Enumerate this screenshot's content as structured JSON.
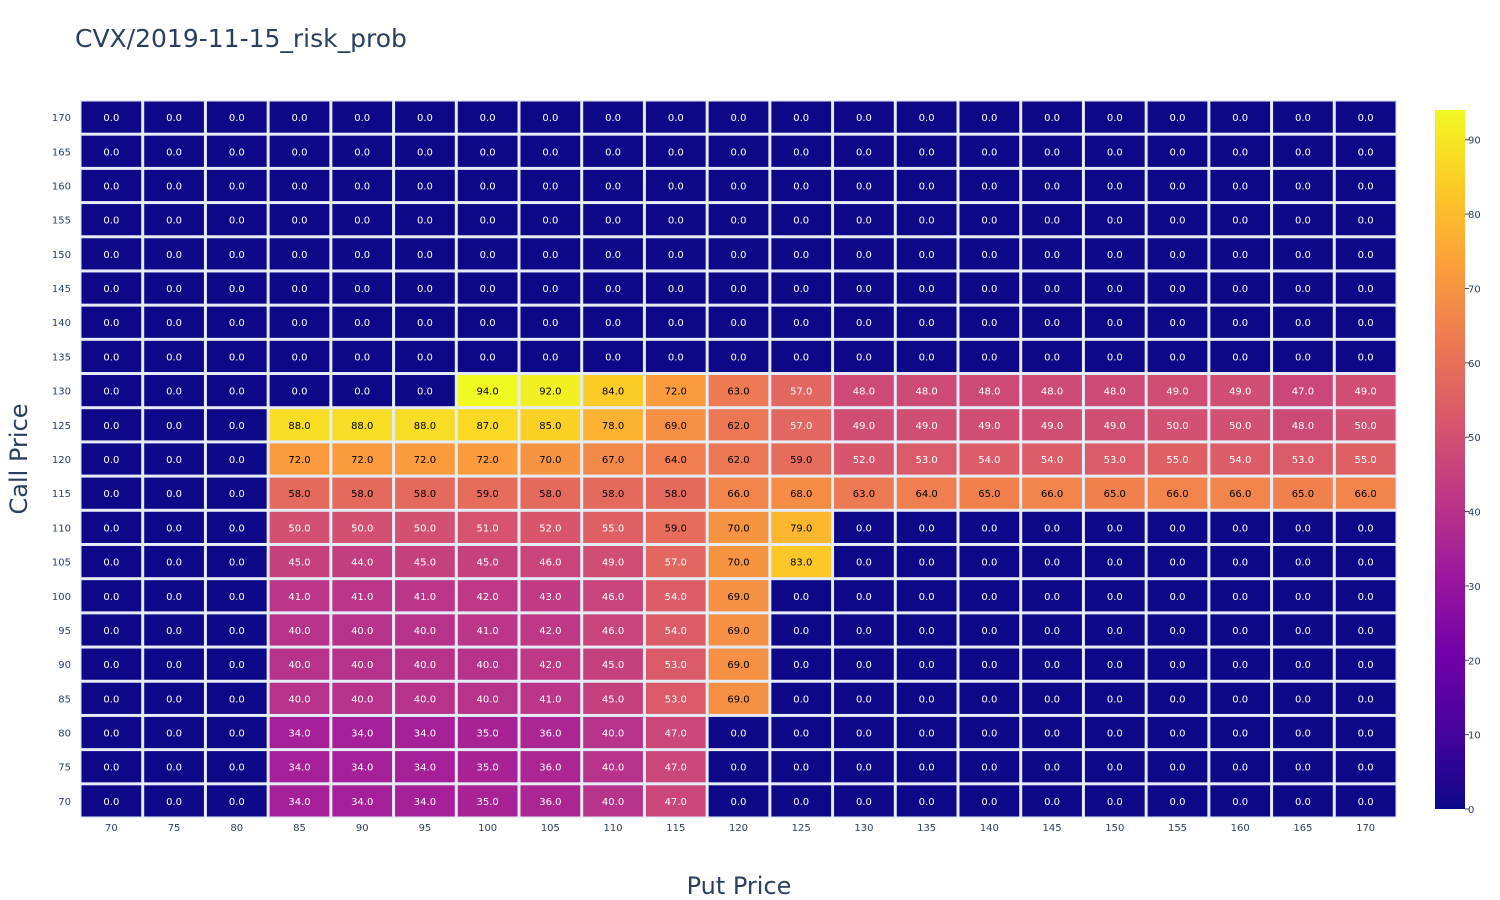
{
  "chart_data": {
    "type": "heatmap",
    "title": "CVX/2019-11-15_risk_prob",
    "xlabel": "Put Price",
    "ylabel": "Call Price",
    "x": [
      "70",
      "75",
      "80",
      "85",
      "90",
      "95",
      "100",
      "105",
      "110",
      "115",
      "120",
      "125",
      "130",
      "135",
      "140",
      "145",
      "150",
      "155",
      "160",
      "165",
      "170"
    ],
    "y": [
      "170",
      "165",
      "160",
      "155",
      "150",
      "145",
      "140",
      "135",
      "130",
      "125",
      "120",
      "115",
      "110",
      "105",
      "100",
      "95",
      "90",
      "85",
      "80",
      "75",
      "70"
    ],
    "z": [
      [
        0,
        0,
        0,
        0,
        0,
        0,
        0,
        0,
        0,
        0,
        0,
        0,
        0,
        0,
        0,
        0,
        0,
        0,
        0,
        0,
        0
      ],
      [
        0,
        0,
        0,
        0,
        0,
        0,
        0,
        0,
        0,
        0,
        0,
        0,
        0,
        0,
        0,
        0,
        0,
        0,
        0,
        0,
        0
      ],
      [
        0,
        0,
        0,
        0,
        0,
        0,
        0,
        0,
        0,
        0,
        0,
        0,
        0,
        0,
        0,
        0,
        0,
        0,
        0,
        0,
        0
      ],
      [
        0,
        0,
        0,
        0,
        0,
        0,
        0,
        0,
        0,
        0,
        0,
        0,
        0,
        0,
        0,
        0,
        0,
        0,
        0,
        0,
        0
      ],
      [
        0,
        0,
        0,
        0,
        0,
        0,
        0,
        0,
        0,
        0,
        0,
        0,
        0,
        0,
        0,
        0,
        0,
        0,
        0,
        0,
        0
      ],
      [
        0,
        0,
        0,
        0,
        0,
        0,
        0,
        0,
        0,
        0,
        0,
        0,
        0,
        0,
        0,
        0,
        0,
        0,
        0,
        0,
        0
      ],
      [
        0,
        0,
        0,
        0,
        0,
        0,
        0,
        0,
        0,
        0,
        0,
        0,
        0,
        0,
        0,
        0,
        0,
        0,
        0,
        0,
        0
      ],
      [
        0,
        0,
        0,
        0,
        0,
        0,
        0,
        0,
        0,
        0,
        0,
        0,
        0,
        0,
        0,
        0,
        0,
        0,
        0,
        0,
        0
      ],
      [
        0,
        0,
        0,
        0,
        0,
        0,
        94,
        92,
        84,
        72,
        63,
        57,
        48,
        48,
        48,
        48,
        48,
        49,
        49,
        47,
        49
      ],
      [
        0,
        0,
        0,
        88,
        88,
        88,
        87,
        85,
        78,
        69,
        62,
        57,
        49,
        49,
        49,
        49,
        49,
        50,
        50,
        48,
        50
      ],
      [
        0,
        0,
        0,
        72,
        72,
        72,
        72,
        70,
        67,
        64,
        62,
        59,
        52,
        53,
        54,
        54,
        53,
        55,
        54,
        53,
        55
      ],
      [
        0,
        0,
        0,
        58,
        58,
        58,
        59,
        58,
        58,
        58,
        66,
        68,
        63,
        64,
        65,
        66,
        65,
        66,
        66,
        65,
        66
      ],
      [
        0,
        0,
        0,
        50,
        50,
        50,
        51,
        52,
        55,
        59,
        70,
        79,
        0,
        0,
        0,
        0,
        0,
        0,
        0,
        0,
        0
      ],
      [
        0,
        0,
        0,
        45,
        44,
        45,
        45,
        46,
        49,
        57,
        70,
        83,
        0,
        0,
        0,
        0,
        0,
        0,
        0,
        0,
        0
      ],
      [
        0,
        0,
        0,
        41,
        41,
        41,
        42,
        43,
        46,
        54,
        69,
        0,
        0,
        0,
        0,
        0,
        0,
        0,
        0,
        0,
        0
      ],
      [
        0,
        0,
        0,
        40,
        40,
        40,
        41,
        42,
        46,
        54,
        69,
        0,
        0,
        0,
        0,
        0,
        0,
        0,
        0,
        0,
        0
      ],
      [
        0,
        0,
        0,
        40,
        40,
        40,
        40,
        42,
        45,
        53,
        69,
        0,
        0,
        0,
        0,
        0,
        0,
        0,
        0,
        0,
        0
      ],
      [
        0,
        0,
        0,
        40,
        40,
        40,
        40,
        41,
        45,
        53,
        69,
        0,
        0,
        0,
        0,
        0,
        0,
        0,
        0,
        0,
        0
      ],
      [
        0,
        0,
        0,
        34,
        34,
        34,
        35,
        36,
        40,
        47,
        0,
        0,
        0,
        0,
        0,
        0,
        0,
        0,
        0,
        0,
        0
      ],
      [
        0,
        0,
        0,
        34,
        34,
        34,
        35,
        36,
        40,
        47,
        0,
        0,
        0,
        0,
        0,
        0,
        0,
        0,
        0,
        0,
        0
      ],
      [
        0,
        0,
        0,
        34,
        34,
        34,
        35,
        36,
        40,
        47,
        0,
        0,
        0,
        0,
        0,
        0,
        0,
        0,
        0,
        0,
        0
      ]
    ],
    "zmin": 0,
    "zmax": 94,
    "colorscale": "plasma",
    "colorbar_ticks": [
      "0",
      "10",
      "20",
      "30",
      "40",
      "50",
      "60",
      "70",
      "80",
      "90"
    ],
    "colors": {
      "cell_gap": "#e5ecf6",
      "axis_text": "#2a3f5f"
    }
  }
}
